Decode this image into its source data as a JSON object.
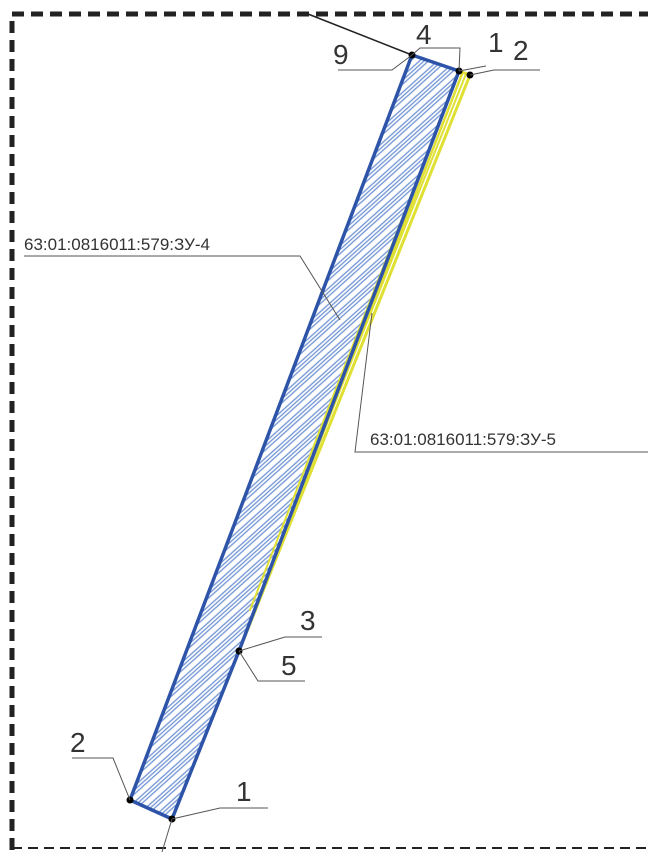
{
  "plot": {
    "cadastral_a": "63:01:0816011:579:ЗУ-4",
    "cadastral_b": "63:01:0816011:579:ЗУ-5",
    "points": {
      "top_left": "9",
      "top_mid": "4",
      "top_right_1": "1",
      "top_right_2": "2",
      "middle_upper": "3",
      "middle_lower": "5",
      "bottom_left": "2",
      "bottom_right": "1"
    }
  },
  "colors": {
    "blue_boundary": "#2d54a8",
    "yellow_boundary": "#e0e034",
    "hatch": "#6f93d4",
    "frame": "#222222",
    "leader": "#555555"
  }
}
